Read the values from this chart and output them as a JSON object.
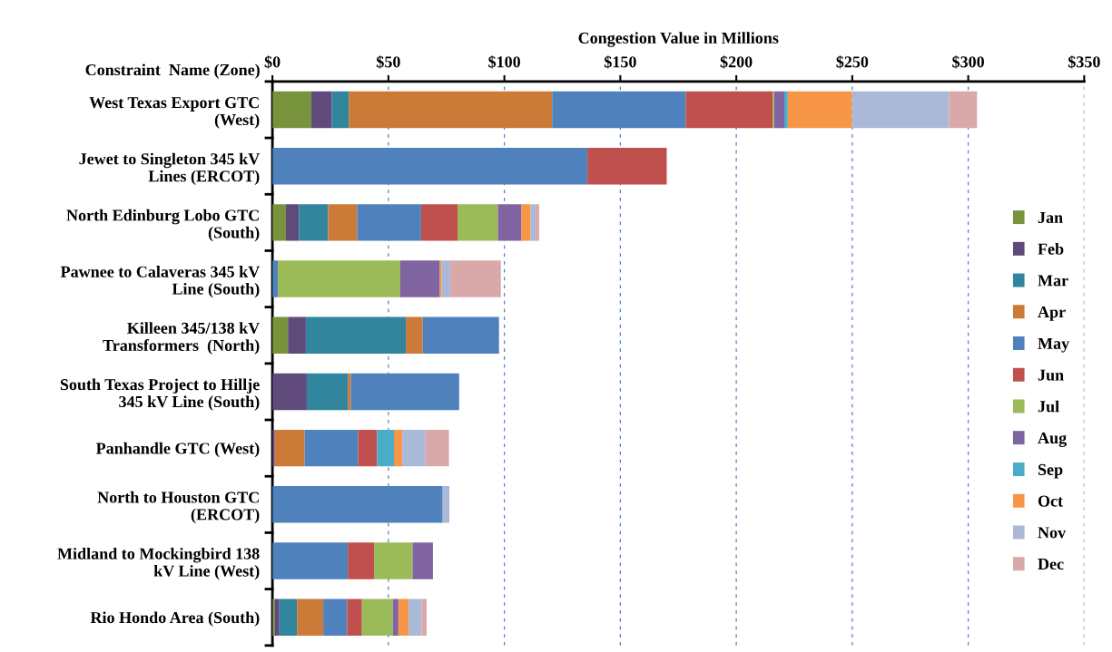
{
  "chart_data": {
    "type": "bar",
    "orientation": "horizontal",
    "stacked": true,
    "xlabel": "Congestion Value in Millions",
    "ylabel": "Constraint  Name (Zone)",
    "categories": [
      "West Texas Export GTC\n(West)",
      "Jewet to Singleton 345 kV\nLines (ERCOT)",
      "North Edinburg Lobo GTC\n(South)",
      "Pawnee to Calaveras 345 kV\nLine (South)",
      "Killeen 345/138 kV\nTransformers  (North)",
      "South Texas Project to Hillje\n345 kV Line (South)",
      "Panhandle GTC (West)",
      "North to Houston GTC\n(ERCOT)",
      "Midland to Mockingbird 138\nkV Line (West)",
      "Rio Hondo Area (South)"
    ],
    "series": [
      {
        "name": "Jan",
        "color": "#77933c",
        "values": [
          16.8,
          null,
          5.8,
          null,
          6.7,
          null,
          null,
          null,
          null,
          0.9
        ]
      },
      {
        "name": "Feb",
        "color": "#604a7b",
        "values": [
          8.8,
          null,
          5.6,
          null,
          7.7,
          14.8,
          1.0,
          null,
          null,
          2.1
        ]
      },
      {
        "name": "Mar",
        "color": "#31859c",
        "values": [
          7.3,
          null,
          12.6,
          null,
          43.1,
          17.7,
          null,
          null,
          null,
          7.6
        ]
      },
      {
        "name": "Apr",
        "color": "#cc7a37",
        "values": [
          87.7,
          null,
          12.5,
          null,
          7.3,
          1.3,
          12.9,
          null,
          null,
          11.3
        ]
      },
      {
        "name": "May",
        "color": "#4f81bd",
        "values": [
          57.6,
          135.8,
          27.6,
          2.3,
          32.9,
          46.7,
          23.0,
          73.4,
          32.5,
          10.3
        ]
      },
      {
        "name": "Jun",
        "color": "#c0504d",
        "values": [
          37.6,
          34.2,
          15.7,
          null,
          null,
          null,
          8.2,
          null,
          11.3,
          6.4
        ]
      },
      {
        "name": "Jul",
        "color": "#9bbb59",
        "values": [
          0.6,
          null,
          17.4,
          52.8,
          null,
          null,
          null,
          null,
          16.6,
          13.3
        ]
      },
      {
        "name": "Aug",
        "color": "#8064a2",
        "values": [
          4.3,
          null,
          10.2,
          17.1,
          null,
          null,
          null,
          null,
          8.8,
          2.4
        ]
      },
      {
        "name": "Sep",
        "color": "#4bacc6",
        "values": [
          1.5,
          null,
          null,
          null,
          null,
          null,
          7.3,
          null,
          null,
          null
        ]
      },
      {
        "name": "Oct",
        "color": "#f79646",
        "values": [
          27.7,
          null,
          3.9,
          0.8,
          null,
          null,
          3.6,
          null,
          null,
          4.4
        ]
      },
      {
        "name": "Nov",
        "color": "#aab9d7",
        "values": [
          41.8,
          null,
          2.1,
          3.7,
          null,
          null,
          10.0,
          2.9,
          null,
          5.6
        ]
      },
      {
        "name": "Dec",
        "color": "#d9a9a9",
        "values": [
          12.1,
          null,
          1.6,
          21.8,
          null,
          null,
          10.1,
          null,
          null,
          2.2
        ]
      }
    ],
    "xlim": [
      0,
      350
    ],
    "xticks": [
      {
        "value": 0,
        "label": "$0"
      },
      {
        "value": 50,
        "label": "$50"
      },
      {
        "value": 100,
        "label": "$100"
      },
      {
        "value": 150,
        "label": "$150"
      },
      {
        "value": 200,
        "label": "$200"
      },
      {
        "value": 250,
        "label": "$250"
      },
      {
        "value": 300,
        "label": "$300"
      },
      {
        "value": 350,
        "label": "$350"
      }
    ],
    "grid": "x",
    "legend": "right"
  }
}
